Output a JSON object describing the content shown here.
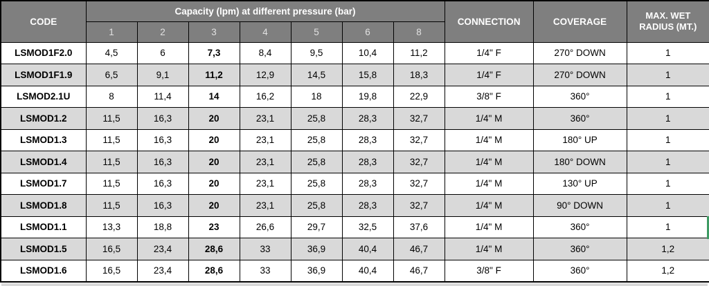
{
  "table": {
    "header": {
      "code": "CODE",
      "capacity_title": "Capacity (lpm) at different pressure (bar)",
      "pressures": [
        "1",
        "2",
        "3",
        "4",
        "5",
        "6",
        "8"
      ],
      "connection": "CONNECTION",
      "coverage": "COVERAGE",
      "max_wet_radius": "MAX. WET RADIUS (MT.)"
    },
    "rows": [
      {
        "code": "LSMOD1F2.0",
        "capacity": [
          "4,5",
          "6",
          "7,3",
          "8,4",
          "9,5",
          "10,4",
          "11,2"
        ],
        "connection": "1/4\" F",
        "coverage": "270° DOWN",
        "max_wet_radius": "1"
      },
      {
        "code": "LSMOD1F1.9",
        "capacity": [
          "6,5",
          "9,1",
          "11,2",
          "12,9",
          "14,5",
          "15,8",
          "18,3"
        ],
        "connection": "1/4\" F",
        "coverage": "270° DOWN",
        "max_wet_radius": "1"
      },
      {
        "code": "LSMOD2.1U",
        "capacity": [
          "8",
          "11,4",
          "14",
          "16,2",
          "18",
          "19,8",
          "22,9"
        ],
        "connection": "3/8\" F",
        "coverage": "360°",
        "max_wet_radius": "1"
      },
      {
        "code": "LSMOD1.2",
        "capacity": [
          "11,5",
          "16,3",
          "20",
          "23,1",
          "25,8",
          "28,3",
          "32,7"
        ],
        "connection": "1/4\" M",
        "coverage": "360°",
        "max_wet_radius": "1"
      },
      {
        "code": "LSMOD1.3",
        "capacity": [
          "11,5",
          "16,3",
          "20",
          "23,1",
          "25,8",
          "28,3",
          "32,7"
        ],
        "connection": "1/4\" M",
        "coverage": "180° UP",
        "max_wet_radius": "1"
      },
      {
        "code": "LSMOD1.4",
        "capacity": [
          "11,5",
          "16,3",
          "20",
          "23,1",
          "25,8",
          "28,3",
          "32,7"
        ],
        "connection": "1/4\" M",
        "coverage": "180° DOWN",
        "max_wet_radius": "1"
      },
      {
        "code": "LSMOD1.7",
        "capacity": [
          "11,5",
          "16,3",
          "20",
          "23,1",
          "25,8",
          "28,3",
          "32,7"
        ],
        "connection": "1/4\" M",
        "coverage": "130° UP",
        "max_wet_radius": "1"
      },
      {
        "code": "LSMOD1.8",
        "capacity": [
          "11,5",
          "16,3",
          "20",
          "23,1",
          "25,8",
          "28,3",
          "32,7"
        ],
        "connection": "1/4\" M",
        "coverage": "90° DOWN",
        "max_wet_radius": "1"
      },
      {
        "code": "LSMOD1.1",
        "capacity": [
          "13,3",
          "18,8",
          "23",
          "26,6",
          "29,7",
          "32,5",
          "37,6"
        ],
        "connection": "1/4\" M",
        "coverage": "360°",
        "max_wet_radius": "1"
      },
      {
        "code": "LSMOD1.5",
        "capacity": [
          "16,5",
          "23,4",
          "28,6",
          "33",
          "36,9",
          "40,4",
          "46,7"
        ],
        "connection": "1/4\" M",
        "coverage": "360°",
        "max_wet_radius": "1,2"
      },
      {
        "code": "LSMOD1.6",
        "capacity": [
          "16,5",
          "23,4",
          "28,6",
          "33",
          "36,9",
          "40,4",
          "46,7"
        ],
        "connection": "3/8\" F",
        "coverage": "360°",
        "max_wet_radius": "1,2"
      }
    ]
  },
  "colors": {
    "header_background": "#7f7f7f",
    "header_text": "#ffffff",
    "pressure_number_text": "#e2e2e2",
    "row_alternate_background": "#d9d9d9",
    "border": "#000000",
    "selection_accent_green": "#3d9b63"
  }
}
